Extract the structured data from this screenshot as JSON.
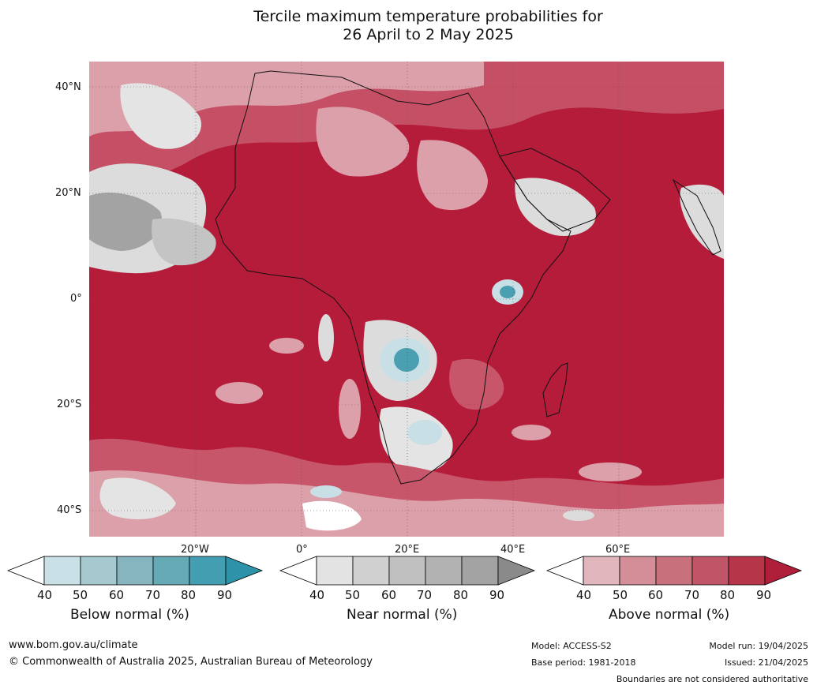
{
  "title": {
    "line1": "Tercile maximum temperature probabilities for",
    "line2": "26 April to 2 May 2025"
  },
  "map": {
    "lat_labels": [
      "40°N",
      "20°N",
      "0°",
      "20°S",
      "40°S"
    ],
    "lon_labels": [
      "20°W",
      "0°",
      "20°E",
      "40°E",
      "60°E"
    ],
    "colors": {
      "above_dark": "#b41c3a",
      "above_mid": "#c7566a",
      "above_light": "#dca0ab",
      "near_light": "#e4e4e4",
      "near_dark": "#a3a3a3",
      "below": "#4a9fb0",
      "below_light": "#c7dfe5"
    }
  },
  "colorbars": [
    {
      "title": "Below normal (%)",
      "ticks": [
        "40",
        "50",
        "60",
        "70",
        "80",
        "90"
      ],
      "colors": [
        "#ffffff",
        "#c9e0e6",
        "#a6c8cf",
        "#87b5bf",
        "#65a9b5",
        "#449eb1",
        "#2c93a8"
      ]
    },
    {
      "title": "Near normal (%)",
      "ticks": [
        "40",
        "50",
        "60",
        "70",
        "80",
        "90"
      ],
      "colors": [
        "#ffffff",
        "#e3e3e3",
        "#d0d0d0",
        "#c0c0c0",
        "#b2b2b2",
        "#a3a3a3",
        "#8a8a8a"
      ]
    },
    {
      "title": "Above normal (%)",
      "ticks": [
        "40",
        "50",
        "60",
        "70",
        "80",
        "90"
      ],
      "colors": [
        "#ffffff",
        "#e0b6bc",
        "#d38e98",
        "#c8707c",
        "#bf5566",
        "#b73549",
        "#b01f3a"
      ]
    }
  ],
  "footer": {
    "website": "www.bom.gov.au/climate",
    "copyright": "© Commonwealth of Australia 2025, Australian Bureau of Meteorology",
    "model": "Model: ACCESS-S2",
    "base_period": "Base period: 1981-2018",
    "model_run": "Model run: 19/04/2025",
    "issued": "Issued: 21/04/2025",
    "boundaries_note": "Boundaries are not considered authoritative"
  }
}
